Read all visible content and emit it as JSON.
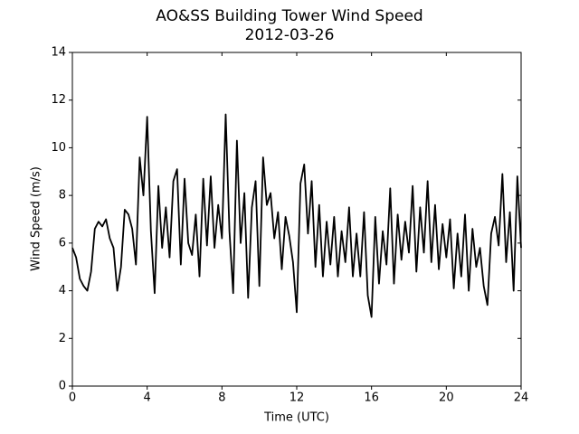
{
  "chart_data": {
    "type": "line",
    "title": "AO&SS Building Tower Wind Speed",
    "subtitle": "2012-03-26",
    "xlabel": "Time (UTC)",
    "ylabel": "Wind Speed (m/s)",
    "xlim": [
      0,
      24
    ],
    "xticks": [
      0,
      4,
      8,
      12,
      16,
      20,
      24
    ],
    "ylim": [
      0,
      14
    ],
    "yticks": [
      0,
      2,
      4,
      6,
      8,
      10,
      12,
      14
    ],
    "x": [
      0,
      0.2,
      0.4,
      0.6,
      0.8,
      1,
      1.2,
      1.4,
      1.6,
      1.8,
      2,
      2.2,
      2.4,
      2.6,
      2.8,
      3,
      3.2,
      3.4,
      3.6,
      3.8,
      4,
      4.2,
      4.4,
      4.6,
      4.8,
      5,
      5.2,
      5.4,
      5.6,
      5.8,
      6,
      6.2,
      6.4,
      6.6,
      6.8,
      7,
      7.2,
      7.4,
      7.6,
      7.8,
      8,
      8.2,
      8.4,
      8.6,
      8.8,
      9,
      9.2,
      9.4,
      9.6,
      9.8,
      10,
      10.2,
      10.4,
      10.6,
      10.8,
      11,
      11.2,
      11.4,
      11.6,
      11.8,
      12,
      12.2,
      12.4,
      12.6,
      12.8,
      13,
      13.2,
      13.4,
      13.6,
      13.8,
      14,
      14.2,
      14.4,
      14.6,
      14.8,
      15,
      15.2,
      15.4,
      15.6,
      15.8,
      16,
      16.2,
      16.4,
      16.6,
      16.8,
      17,
      17.2,
      17.4,
      17.6,
      17.8,
      18,
      18.2,
      18.4,
      18.6,
      18.8,
      19,
      19.2,
      19.4,
      19.6,
      19.8,
      20,
      20.2,
      20.4,
      20.6,
      20.8,
      21,
      21.2,
      21.4,
      21.6,
      21.8,
      22,
      22.2,
      22.4,
      22.6,
      22.8,
      23,
      23.2,
      23.4,
      23.6,
      23.8,
      24
    ],
    "series": [
      {
        "color": "#000000",
        "values": [
          5.8,
          5.4,
          4.5,
          4.2,
          4.0,
          4.8,
          6.6,
          6.9,
          6.7,
          7.0,
          6.2,
          5.8,
          4.0,
          5.0,
          7.4,
          7.2,
          6.6,
          5.1,
          9.6,
          8.0,
          11.3,
          6.5,
          3.9,
          8.4,
          5.8,
          7.5,
          5.4,
          8.6,
          9.1,
          5.1,
          8.7,
          6.0,
          5.5,
          7.2,
          4.6,
          8.7,
          5.9,
          8.8,
          5.8,
          7.6,
          6.2,
          11.4,
          6.5,
          3.9,
          10.3,
          6.0,
          8.1,
          3.7,
          7.5,
          8.6,
          4.2,
          9.6,
          7.6,
          8.1,
          6.2,
          7.3,
          4.9,
          7.1,
          6.3,
          5.2,
          3.1,
          8.5,
          9.3,
          6.4,
          8.6,
          5.0,
          7.6,
          4.6,
          6.9,
          5.1,
          7.1,
          4.6,
          6.5,
          5.2,
          7.5,
          4.6,
          6.4,
          4.6,
          7.3,
          3.8,
          2.9,
          7.1,
          4.3,
          6.5,
          5.1,
          8.3,
          4.3,
          7.2,
          5.3,
          6.9,
          5.6,
          8.4,
          4.8,
          7.5,
          5.6,
          8.6,
          5.2,
          7.6,
          4.9,
          6.8,
          5.4,
          7.0,
          4.1,
          6.4,
          4.6,
          7.2,
          4.0,
          6.6,
          5.0,
          5.8,
          4.2,
          3.4,
          6.4,
          7.1,
          5.9,
          8.9,
          5.2,
          7.3,
          4.0,
          8.8,
          5.8
        ]
      }
    ]
  }
}
